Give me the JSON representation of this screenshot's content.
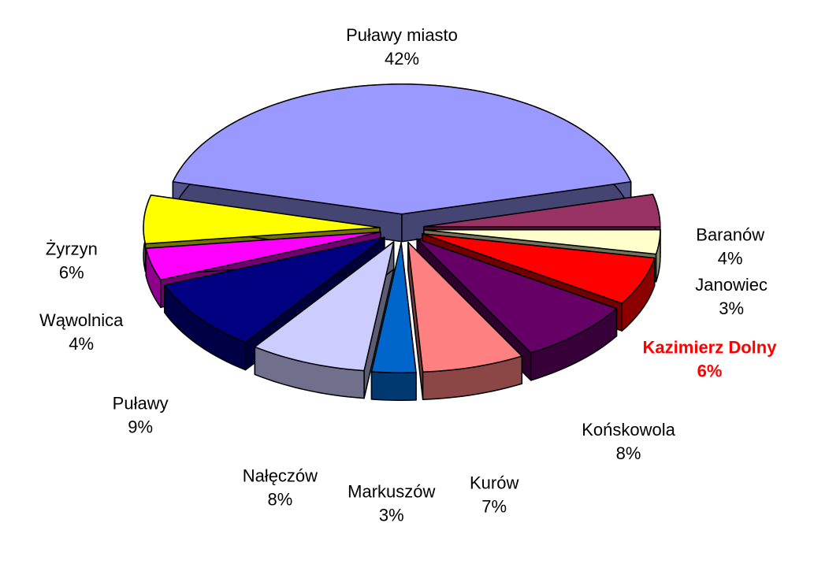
{
  "chart_data": {
    "type": "pie",
    "categories": [
      "Puławy miasto",
      "Baranów",
      "Janowiec",
      "Kazimierz Dolny",
      "Końskowola",
      "Kurów",
      "Markuszów",
      "Nałęczów",
      "Puławy",
      "Wąwolnica",
      "Żyrzyn"
    ],
    "values": [
      42,
      4,
      3,
      6,
      8,
      7,
      3,
      8,
      9,
      4,
      6
    ],
    "value_labels": [
      "42%",
      "4%",
      "3%",
      "6%",
      "8%",
      "7%",
      "3%",
      "8%",
      "9%",
      "4%",
      "6%"
    ],
    "colors": [
      "#9999ff",
      "#993366",
      "#ffffcc",
      "#ff0000",
      "#660066",
      "#ff8080",
      "#0066cc",
      "#ccccff",
      "#000080",
      "#ff00ff",
      "#ffff00"
    ],
    "label_colors": [
      "#000000",
      "#000000",
      "#000000",
      "#ff0000",
      "#000000",
      "#000000",
      "#000000",
      "#000000",
      "#000000",
      "#000000",
      "#000000"
    ],
    "label_bold": [
      false,
      false,
      false,
      true,
      false,
      false,
      false,
      false,
      false,
      false,
      false
    ],
    "exploded": true,
    "three_d": true
  }
}
